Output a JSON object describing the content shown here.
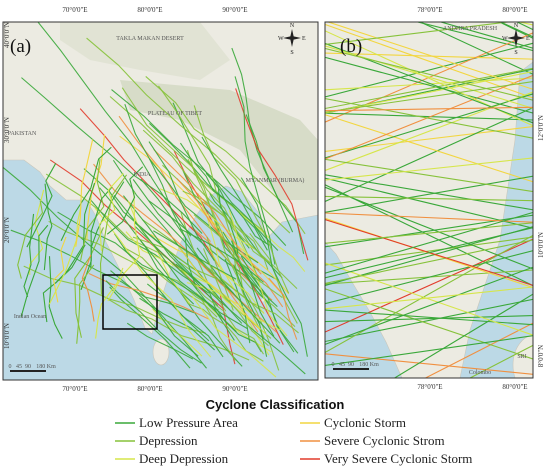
{
  "panels": [
    {
      "label": "(a)",
      "top_lon": [
        "70°0'0\"E",
        "80°0'0\"E",
        "90°0'0\"E"
      ],
      "bottom_lon": [
        "70°0'0\"E",
        "80°0'0\"E",
        "90°0'0\"E"
      ],
      "lat": [
        "40°0'0\"N",
        "30°0'0\"N",
        "20°0'0\"N",
        "10°0'0\"N"
      ],
      "scale": [
        "0",
        "45",
        "90",
        "180 Km"
      ],
      "places": [
        "PAKISTAN",
        "INDIA",
        "MYANMAR (BURMA)",
        "PLATEAU OF TIBET",
        "Indian Ocean",
        "TAKLA MAKAN DESERT"
      ]
    },
    {
      "label": "(b)",
      "top_lon": [
        "78°0'0\"E",
        "80°0'0\"E"
      ],
      "bottom_lon": [
        "78°0'0\"E",
        "80°0'0\"E"
      ],
      "lat": [
        "12°0'0\"N",
        "10°0'0\"N",
        "8°0'0\"N"
      ],
      "scale": [
        "0",
        "45",
        "90",
        "180 Km"
      ],
      "places": [
        "ANDHRA PRADESH",
        "Colombo",
        "SRI"
      ]
    }
  ],
  "legend": {
    "title": "Cyclone Classification",
    "items": [
      {
        "name": "Low Pressure Area",
        "color": "#3aa83a"
      },
      {
        "name": "Cyclonic Storm",
        "color": "#f2d640"
      },
      {
        "name": "Depression",
        "color": "#86c23a"
      },
      {
        "name": "Severe Cyclonic Strom",
        "color": "#f09040"
      },
      {
        "name": "Deep Depression",
        "color": "#d6e64a"
      },
      {
        "name": "Very Severe Cyclonic Storm",
        "color": "#e23c2c"
      }
    ]
  }
}
